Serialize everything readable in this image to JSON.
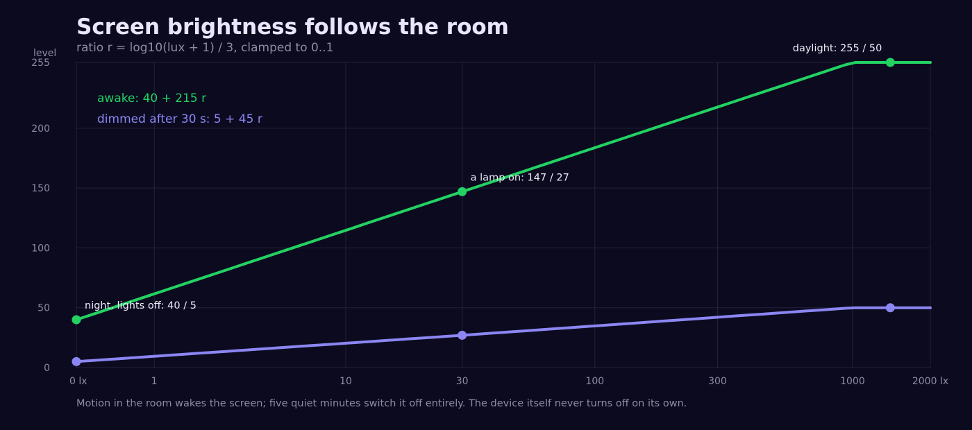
{
  "page": {
    "title": "Screen brightness follows the room",
    "subtitle": "ratio r = log10(lux + 1) / 3, clamped to 0..1",
    "footnote": "Motion in the room wakes the screen; five quiet minutes switch it off entirely. The device itself never turns off on its own."
  },
  "colors": {
    "background": "#0c0a1f",
    "grid": "#25223a",
    "awake": "#22d262",
    "dimmed": "#8b86f2"
  },
  "chart_data": {
    "type": "line",
    "ylabel": "level",
    "ylim": [
      0,
      255
    ],
    "yticks": [
      0,
      50,
      100,
      150,
      200,
      255
    ],
    "xscale": "log10(lux + 1)",
    "xlim": [
      0,
      2000
    ],
    "xticks": [
      {
        "value": 0,
        "label": "0 lx"
      },
      {
        "value": 1,
        "label": "1"
      },
      {
        "value": 10,
        "label": "10"
      },
      {
        "value": 30,
        "label": "30"
      },
      {
        "value": 100,
        "label": "100"
      },
      {
        "value": 300,
        "label": "300"
      },
      {
        "value": 1000,
        "label": "1000"
      },
      {
        "value": 2000,
        "label": "2000 lx"
      }
    ],
    "series": [
      {
        "name": "awake: 40 + 215 r",
        "color": "#22d262",
        "x": [
          0,
          30,
          999,
          2000
        ],
        "y": [
          40,
          147,
          255,
          255
        ],
        "markers": [
          {
            "x": 0,
            "y": 40
          },
          {
            "x": 30,
            "y": 147
          },
          {
            "x": 1400,
            "y": 255
          }
        ]
      },
      {
        "name": "dimmed after 30 s: 5 + 45 r",
        "color": "#8b86f2",
        "x": [
          0,
          30,
          999,
          2000
        ],
        "y": [
          5,
          27,
          50,
          50
        ],
        "markers": [
          {
            "x": 0,
            "y": 5
          },
          {
            "x": 30,
            "y": 27
          },
          {
            "x": 1400,
            "y": 50
          }
        ]
      }
    ],
    "annotations": [
      {
        "text": "night, lights off: 40 / 5",
        "x": 0,
        "y": 40
      },
      {
        "text": "a lamp on: 147 / 27",
        "x": 30,
        "y": 147
      },
      {
        "text": "daylight: 255 / 50",
        "x": 1400,
        "y": 255
      }
    ],
    "grid": true,
    "legend": "top-left"
  }
}
